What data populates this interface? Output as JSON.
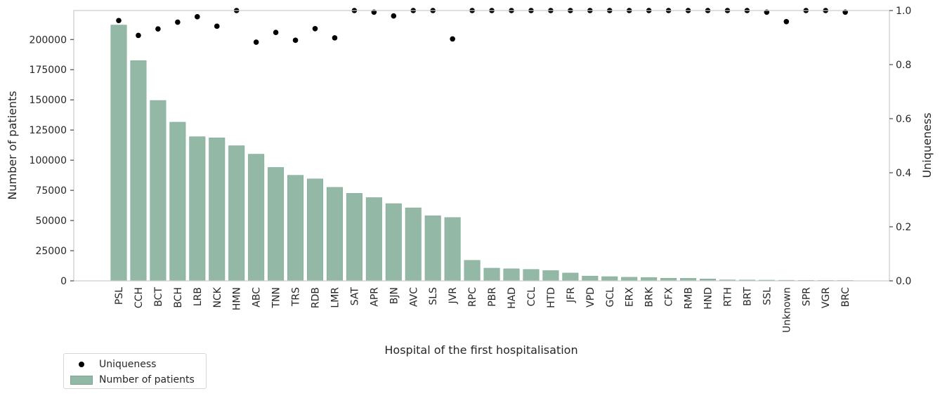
{
  "chart_data": {
    "type": "bar",
    "title": "",
    "xlabel": "Hospital of the first hospitalisation",
    "ylabel": "Number of patients",
    "y2label": "Uniqueness",
    "ylim": [
      0,
      224000
    ],
    "yticks": [
      0,
      25000,
      50000,
      75000,
      100000,
      125000,
      150000,
      175000,
      200000
    ],
    "y2lim": [
      0,
      1
    ],
    "y2ticks": [
      "0.0",
      "0.2",
      "0.4",
      "0.6",
      "0.8",
      "1.0"
    ],
    "grid": false,
    "legend_position": "bottom-left, below the plot",
    "categories": [
      "PSL",
      "CCH",
      "BCT",
      "BCH",
      "LRB",
      "NCK",
      "HMN",
      "ABC",
      "TNN",
      "TRS",
      "RDB",
      "LMR",
      "SAT",
      "APR",
      "BJN",
      "AVC",
      "SLS",
      "JVR",
      "RPC",
      "PBR",
      "HAD",
      "CCL",
      "HTD",
      "JFR",
      "VPD",
      "GCL",
      "ERX",
      "BRK",
      "CFX",
      "RMB",
      "HND",
      "RTH",
      "BRT",
      "SSL",
      "Unknown",
      "SPR",
      "VGR",
      "BRC"
    ],
    "series": [
      {
        "name": "Number of patients",
        "kind": "bar",
        "axis": "left",
        "color": "#94b8a6",
        "values": [
          212000,
          182500,
          149500,
          131500,
          119500,
          118500,
          112000,
          105000,
          94000,
          87500,
          84500,
          77500,
          72500,
          69000,
          64000,
          60500,
          54000,
          52500,
          17000,
          10500,
          10000,
          9500,
          8500,
          6500,
          4000,
          3500,
          3000,
          2800,
          2200,
          2100,
          1600,
          800,
          700,
          600,
          500,
          400,
          300,
          100
        ]
      },
      {
        "name": "Uniqueness",
        "kind": "scatter",
        "axis": "right",
        "color": "#000000",
        "values": [
          0.963,
          0.908,
          0.932,
          0.957,
          0.977,
          0.942,
          1.0,
          0.883,
          0.919,
          0.89,
          0.933,
          0.899,
          1.0,
          0.994,
          0.98,
          1.0,
          1.0,
          0.895,
          1.0,
          1.0,
          1.0,
          1.0,
          1.0,
          1.0,
          1.0,
          1.0,
          1.0,
          1.0,
          1.0,
          1.0,
          1.0,
          1.0,
          1.0,
          0.994,
          0.959,
          1.0,
          1.0,
          0.994
        ]
      }
    ]
  }
}
